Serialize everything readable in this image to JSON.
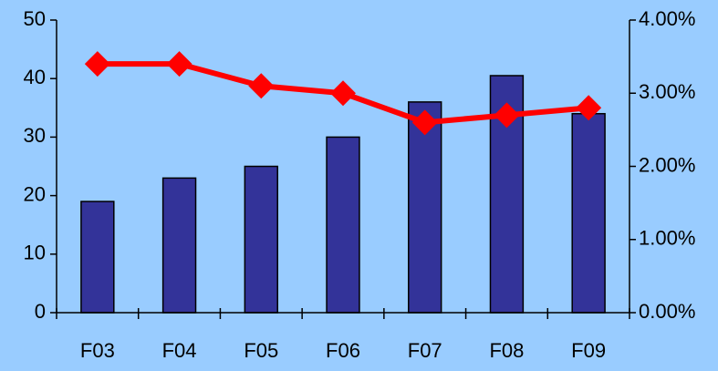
{
  "chart_data": {
    "type": "bar-line",
    "categories": [
      "F03",
      "F04",
      "F05",
      "F06",
      "F07",
      "F08",
      "F09"
    ],
    "series": [
      {
        "type": "bar",
        "color": "#333399",
        "values": [
          19,
          23,
          25,
          30,
          36,
          40.5,
          34
        ]
      },
      {
        "type": "line",
        "axis": "y2",
        "color": "#ff0000",
        "values": [
          3.4,
          3.4,
          3.1,
          3.0,
          2.6,
          2.7,
          2.8
        ]
      }
    ],
    "ylim": [
      0,
      50
    ],
    "yticks": [
      0,
      10,
      20,
      30,
      40,
      50
    ],
    "y2lim": [
      0,
      4
    ],
    "y2ticks": [
      {
        "value": 0,
        "label": "0.00%"
      },
      {
        "value": 1,
        "label": "1.00%"
      },
      {
        "value": 2,
        "label": "2.00%"
      },
      {
        "value": 3,
        "label": "3.00%"
      },
      {
        "value": 4,
        "label": "4.00%"
      }
    ]
  }
}
